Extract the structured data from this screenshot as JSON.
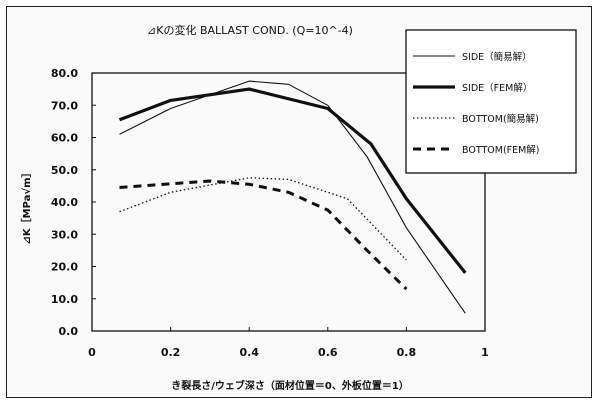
{
  "chart_data": {
    "type": "line",
    "title": "⊿Kの変化 BALLAST COND. (Q=10^-4)",
    "xlabel": "き裂長さ/ウェブ深さ（面材位置＝0、外板位置＝1）",
    "ylabel": "⊿K［MPa√m］",
    "xlim": [
      0,
      1
    ],
    "ylim": [
      0,
      80
    ],
    "x_ticks": [
      "0",
      "0.2",
      "0.4",
      "0.6",
      "0.8",
      "1"
    ],
    "x_tick_values": [
      0,
      0.2,
      0.4,
      0.6,
      0.8,
      1
    ],
    "y_ticks": [
      "0.0",
      "10.0",
      "20.0",
      "30.0",
      "40.0",
      "50.0",
      "60.0",
      "70.0",
      "80.0"
    ],
    "y_tick_values": [
      0,
      10,
      20,
      30,
      40,
      50,
      60,
      70,
      80
    ],
    "grid": false,
    "legend_position": "top-right",
    "series": [
      {
        "name": "SIDE（簡易解）",
        "style": "thin-solid",
        "color": "#111111",
        "x": [
          0.07,
          0.2,
          0.4,
          0.5,
          0.6,
          0.7,
          0.8,
          0.95
        ],
        "y": [
          61,
          69,
          77.5,
          76.5,
          70,
          54,
          32,
          5.5
        ]
      },
      {
        "name": "SIDE（FEM解）",
        "style": "thick-solid",
        "color": "#111111",
        "x": [
          0.07,
          0.2,
          0.4,
          0.6,
          0.71,
          0.8,
          0.95
        ],
        "y": [
          65.5,
          71.5,
          75,
          69,
          58,
          41,
          18
        ]
      },
      {
        "name": "BOTTOM(簡易解)",
        "style": "dotted",
        "color": "#111111",
        "x": [
          0.07,
          0.2,
          0.4,
          0.5,
          0.6,
          0.65,
          0.8
        ],
        "y": [
          37,
          43,
          47.5,
          47,
          43,
          41,
          22
        ]
      },
      {
        "name": "BOTTOM(FEM解)",
        "style": "dashed",
        "color": "#111111",
        "x": [
          0.07,
          0.3,
          0.4,
          0.5,
          0.6,
          0.7,
          0.8
        ],
        "y": [
          44.5,
          46.5,
          45.5,
          43,
          37.5,
          25,
          13
        ]
      }
    ]
  }
}
